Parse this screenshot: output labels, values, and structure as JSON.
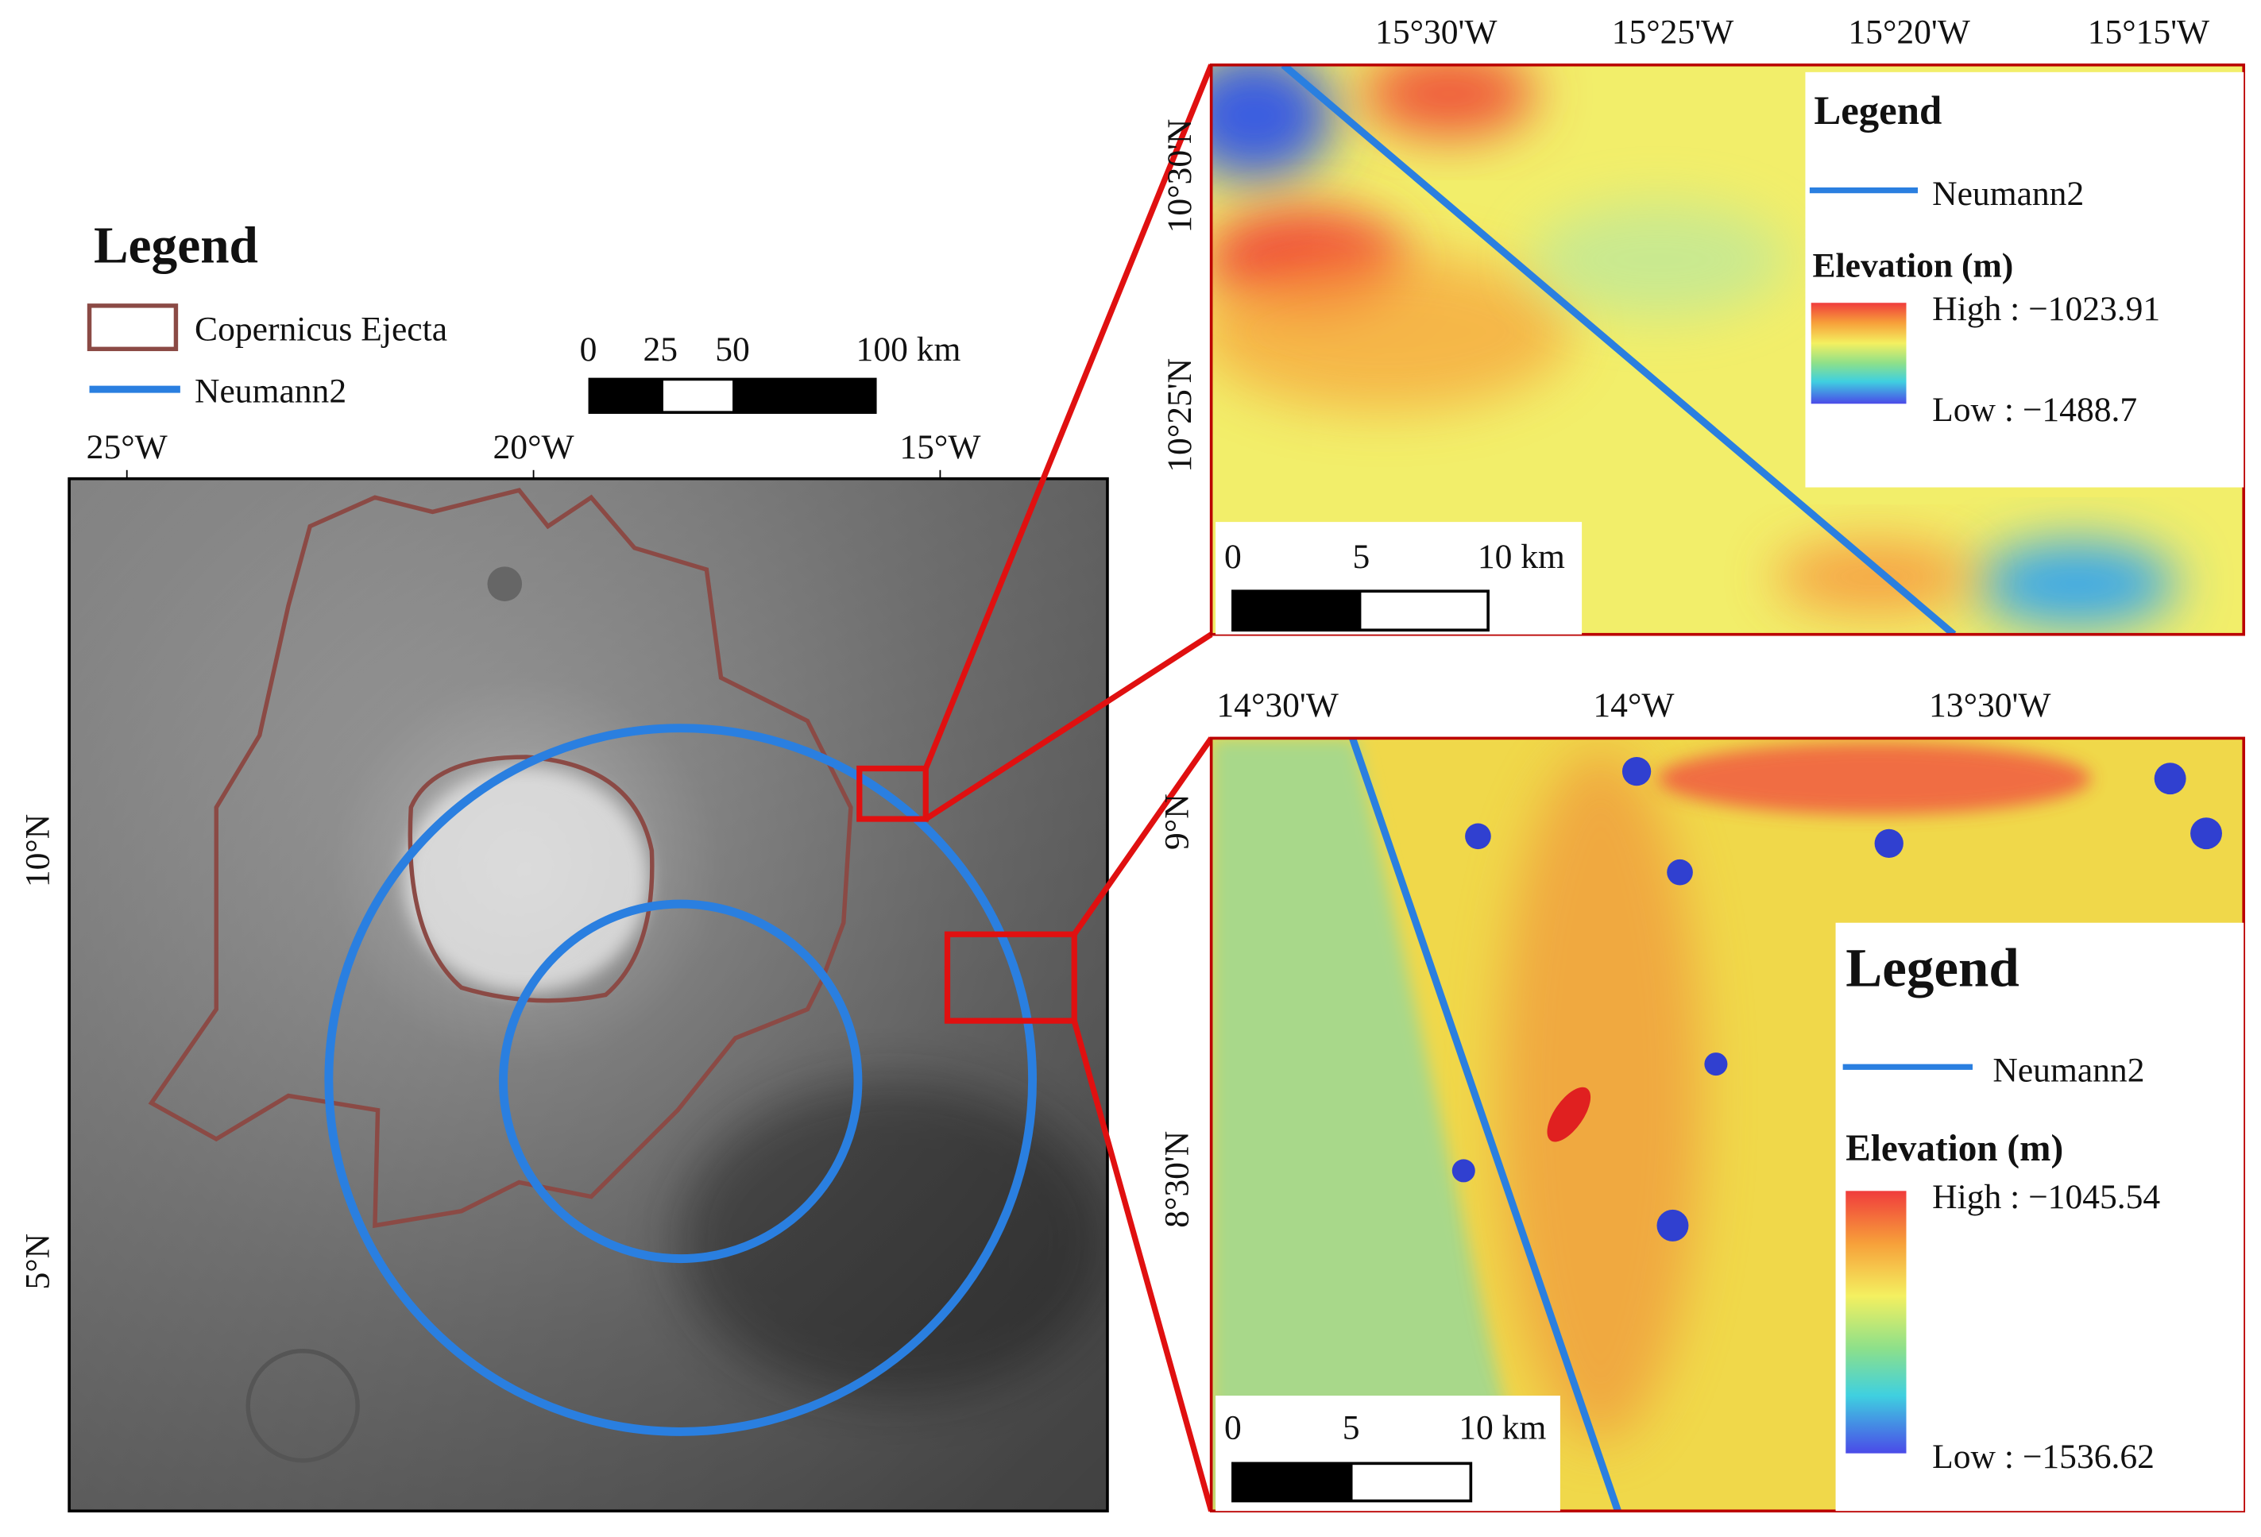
{
  "main_map": {
    "legend": {
      "title": "Legend",
      "items": [
        "Copernicus Ejecta",
        "Neumann2"
      ]
    },
    "scale_bar": {
      "labels": [
        "0",
        "25",
        "50",
        "100 km"
      ]
    },
    "x_labels": [
      "25°W",
      "20°W",
      "15°W"
    ],
    "y_labels": [
      "10°N",
      "5°N"
    ]
  },
  "inset_top": {
    "x_labels": [
      "15°30'W",
      "15°25'W",
      "15°20'W",
      "15°15'W"
    ],
    "y_labels": [
      "10°30'N",
      "10°25'N"
    ],
    "legend": {
      "title": "Legend",
      "line": "Neumann2",
      "elevation_title": "Elevation (m)",
      "high": "High : −1023.91",
      "low": "Low : −1488.7"
    },
    "scale_bar": {
      "labels": [
        "0",
        "5",
        "10 km"
      ]
    }
  },
  "inset_bottom": {
    "x_labels": [
      "14°30'W",
      "14°W",
      "13°30'W"
    ],
    "y_labels": [
      "9°N",
      "8°30'N"
    ],
    "legend": {
      "title": "Legend",
      "line": "Neumann2",
      "elevation_title": "Elevation (m)",
      "high": "High : −1045.54",
      "low": "Low : −1536.62"
    },
    "scale_bar": {
      "labels": [
        "0",
        "5",
        "10 km"
      ]
    }
  }
}
